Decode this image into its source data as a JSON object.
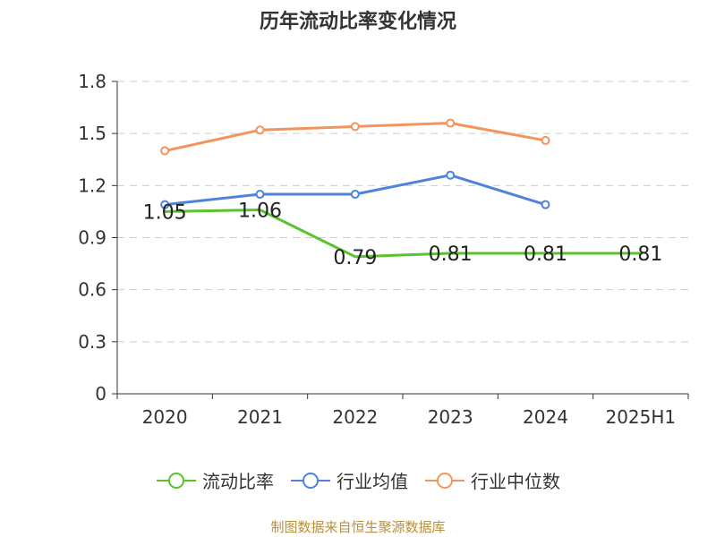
{
  "title": "历年流动比率变化情况",
  "source": "制图数据来自恒生聚源数据库",
  "chart_data": {
    "type": "line",
    "categories": [
      "2020",
      "2021",
      "2022",
      "2023",
      "2024",
      "2025H1"
    ],
    "ylim": [
      0,
      1.8
    ],
    "yticks": [
      "0",
      "0.3",
      "0.6",
      "0.9",
      "1.2",
      "1.5",
      "1.8"
    ],
    "grid": true,
    "legend_position": "bottom",
    "series": [
      {
        "name": "流动比率",
        "color": "#5ac22d",
        "values": [
          1.05,
          1.06,
          0.79,
          0.81,
          0.81,
          0.81
        ],
        "labels": [
          "1.05",
          "1.06",
          "0.79",
          "0.81",
          "0.81",
          "0.81"
        ],
        "show_labels": true,
        "hollow_points": false
      },
      {
        "name": "行业均值",
        "color": "#4f82dc",
        "values": [
          1.09,
          1.15,
          1.15,
          1.26,
          1.09,
          null
        ],
        "show_labels": false,
        "hollow_points": true
      },
      {
        "name": "行业中位数",
        "color": "#f4945c",
        "values": [
          1.4,
          1.52,
          1.54,
          1.56,
          1.46,
          null
        ],
        "show_labels": false,
        "hollow_points": true
      }
    ]
  }
}
